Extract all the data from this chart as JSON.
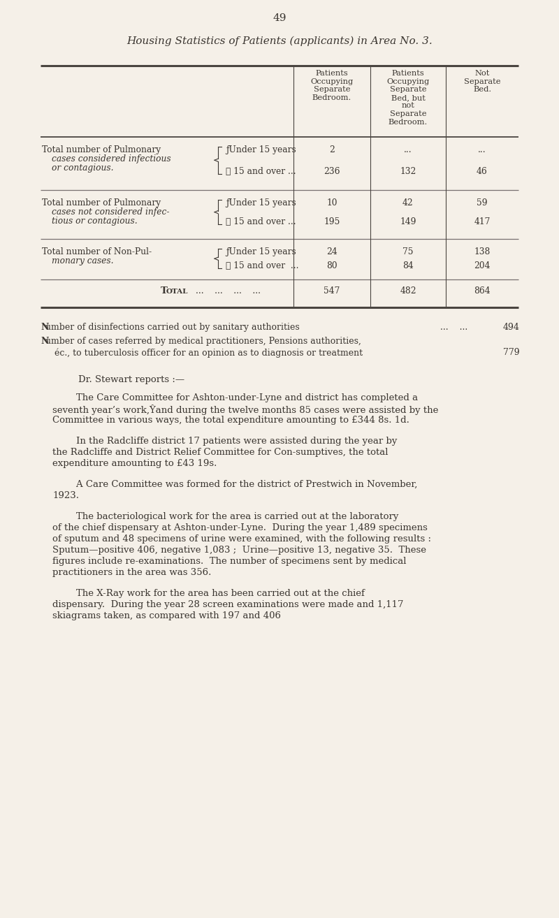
{
  "page_number": "49",
  "title": "Housing Statistics of Patients (applicants) in Area No. 3.",
  "background_color": "#f5f0e8",
  "text_color": "#3a3530",
  "col_headers": [
    "Patients\nOccupying\nSeparate\nBedroom.",
    "Patients\nOccupying\nSeparate\nBed, but\nnot\nSeparate\nBedroom.",
    "Not\nSeparate\nBed."
  ],
  "table_rows": [
    {
      "label_main": "Total number of Pulmonary",
      "label_italic": "cases considered infectious",
      "label_italic2": "or contagious.",
      "sub_rows": [
        {
          "sub_label": "ƒUnder 15 years",
          "vals": [
            "2",
            "...",
            "..."
          ]
        },
        {
          "sub_label": "ℓ 15 and over ...",
          "vals": [
            "236",
            "132",
            "46"
          ]
        }
      ]
    },
    {
      "label_main": "Total number of Pulmonary",
      "label_italic": "cases not considered infec-",
      "label_italic2": "tious or contagious.",
      "sub_rows": [
        {
          "sub_label": "ƒUnder 15 years",
          "vals": [
            "10",
            "42",
            "59"
          ]
        },
        {
          "sub_label": "ℓ 15 and over ...",
          "vals": [
            "195",
            "149",
            "417"
          ]
        }
      ]
    },
    {
      "label_main": "Total number of Non-Pul-",
      "label_italic": "monary cases.",
      "label_italic2": "",
      "sub_rows": [
        {
          "sub_label": "ƒUnder 15 years",
          "vals": [
            "24",
            "75",
            "138"
          ]
        },
        {
          "sub_label": "ℓ 15 and over  ...",
          "vals": [
            "80",
            "84",
            "204"
          ]
        }
      ]
    }
  ],
  "total_row": {
    "label": "Total",
    "vals": [
      "547",
      "482",
      "864"
    ]
  },
  "line_disinfections": "Number of disinfections carried out by sanitary authorities",
  "val_disinfections": "494",
  "line_cases_bold": "Number",
  "line_cases_rest": " of cases referred by medical practitioners, Pensions authorities,",
  "line_cases2": "éc., to tuberculosis officer for an opinion as to diagnosis or treatment",
  "val_cases": "779",
  "dr_stewart": "Dr. Stewart reports :—",
  "paragraphs": [
    "        The Care Committee for Ashton-under-Lyne and district has completed a seventh year’s work,Ŷand during the twelve months 85 cases were assisted by the Committee in various ways, the total expenditure amounting to £344 8s. 1d.",
    "        In the Radcliffe district 17 patients were assisted during the year by the Radcliffe and District Relief Committee for Con­sumptives, the total expenditure amounting to £43 19s.",
    "        A Care Committee was formed for the district of Prestwich in November, 1923.",
    "        The bacteriological work for the area is carried out at the laboratory of the chief dispensary at Ashton-under-Lyne.  During the year 1,489 specimens of sputum and 48 specimens of urine were examined, with the following results :  Sputum—positive 406, negative 1,083 ;  Urine—positive 13, negative 35.  These figures include re-examinations.  The number of specimens sent by medical practitioners in the area was 356.",
    "        The X-Ray work for the area has been carried out at the chief dispensary.  During the year 28 screen examinations were made and 1,117 skiagrams taken, as compared with 197 and 406"
  ]
}
